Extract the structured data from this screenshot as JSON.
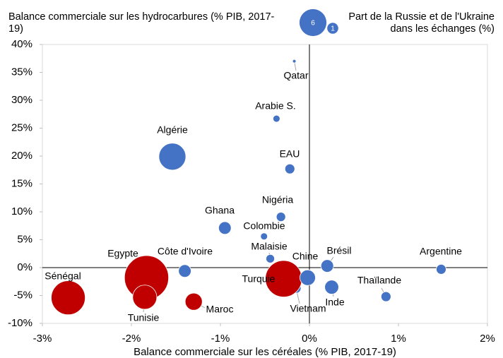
{
  "chart_data": {
    "type": "scatter",
    "ylabel": "Balance commerciale sur les hydrocarbures (% PIB, 2017-19)",
    "xlabel": "Balance commerciale sur les céréales (% PIB, 2017-19)",
    "size_label": "Part de la Russie et de l'Ukraine dans les échanges (%)",
    "size_legend": [
      {
        "value": 6,
        "label": "6"
      },
      {
        "value": 1,
        "label": "1"
      }
    ],
    "legend_color": "#4472c4",
    "xlim": [
      -3,
      2
    ],
    "ylim": [
      -10,
      40
    ],
    "xticks": [
      {
        "value": -3,
        "label": "-3%"
      },
      {
        "value": -2,
        "label": "-2%"
      },
      {
        "value": -1,
        "label": "-1%"
      },
      {
        "value": 0,
        "label": "0%"
      },
      {
        "value": 1,
        "label": "1%"
      },
      {
        "value": 2,
        "label": "2%"
      }
    ],
    "yticks": [
      {
        "value": -10,
        "label": "-10%"
      },
      {
        "value": -5,
        "label": "-5%"
      },
      {
        "value": 0,
        "label": "0%"
      },
      {
        "value": 5,
        "label": "5%"
      },
      {
        "value": 10,
        "label": "10%"
      },
      {
        "value": 15,
        "label": "15%"
      },
      {
        "value": 20,
        "label": "20%"
      },
      {
        "value": 25,
        "label": "25%"
      },
      {
        "value": 30,
        "label": "30%"
      },
      {
        "value": 35,
        "label": "35%"
      },
      {
        "value": 40,
        "label": "40%"
      }
    ],
    "points": [
      {
        "name": "Qatar",
        "x": -0.17,
        "y": 37.0,
        "size": 0.1,
        "color": "#4472c4"
      },
      {
        "name": "Arabie S.",
        "x": -0.37,
        "y": 26.7,
        "size": 0.4,
        "color": "#4472c4"
      },
      {
        "name": "Algérie",
        "x": -1.54,
        "y": 19.9,
        "size": 6,
        "color": "#4472c4"
      },
      {
        "name": "EAU",
        "x": -0.22,
        "y": 17.7,
        "size": 0.8,
        "color": "#4472c4"
      },
      {
        "name": "Nigéria",
        "x": -0.32,
        "y": 9.1,
        "size": 0.7,
        "color": "#4472c4"
      },
      {
        "name": "Ghana",
        "x": -0.95,
        "y": 7.1,
        "size": 1.3,
        "color": "#4472c4"
      },
      {
        "name": "Colombie",
        "x": -0.51,
        "y": 5.6,
        "size": 0.4,
        "color": "#4472c4"
      },
      {
        "name": "Malaisie",
        "x": -0.44,
        "y": 1.6,
        "size": 0.6,
        "color": "#4472c4"
      },
      {
        "name": "Côte d'Ivoire",
        "x": -1.4,
        "y": -0.6,
        "size": 1.3,
        "color": "#4472c4"
      },
      {
        "name": "Argentine",
        "x": 1.48,
        "y": -0.3,
        "size": 0.8,
        "color": "#4472c4"
      },
      {
        "name": "Brésil",
        "x": 0.2,
        "y": 0.3,
        "size": 1.3,
        "color": "#4472c4"
      },
      {
        "name": "Vietnam",
        "x": -0.15,
        "y": -3.7,
        "size": 0.8,
        "color": "#4472c4"
      },
      {
        "name": "Inde",
        "x": 0.25,
        "y": -3.5,
        "size": 1.6,
        "color": "#4472c4"
      },
      {
        "name": "Thaïlande",
        "x": 0.86,
        "y": -5.2,
        "size": 0.8,
        "color": "#4472c4"
      },
      {
        "name": "Turquie",
        "x": -0.29,
        "y": -2.0,
        "size": 11,
        "color": "#c00000"
      },
      {
        "name": "Chine",
        "x": -0.02,
        "y": -1.8,
        "size": 2,
        "color": "#4472c4"
      },
      {
        "name": "Egypte",
        "x": -1.83,
        "y": -1.8,
        "size": 16,
        "color": "#c00000"
      },
      {
        "name": "Tunisie",
        "x": -1.85,
        "y": -5.3,
        "size": 4.8,
        "color": "#c00000"
      },
      {
        "name": "Maroc",
        "x": -1.3,
        "y": -6.1,
        "size": 2.4,
        "color": "#c00000"
      },
      {
        "name": "Sénégal",
        "x": -2.71,
        "y": -5.4,
        "size": 9.5,
        "color": "#c00000"
      }
    ]
  }
}
